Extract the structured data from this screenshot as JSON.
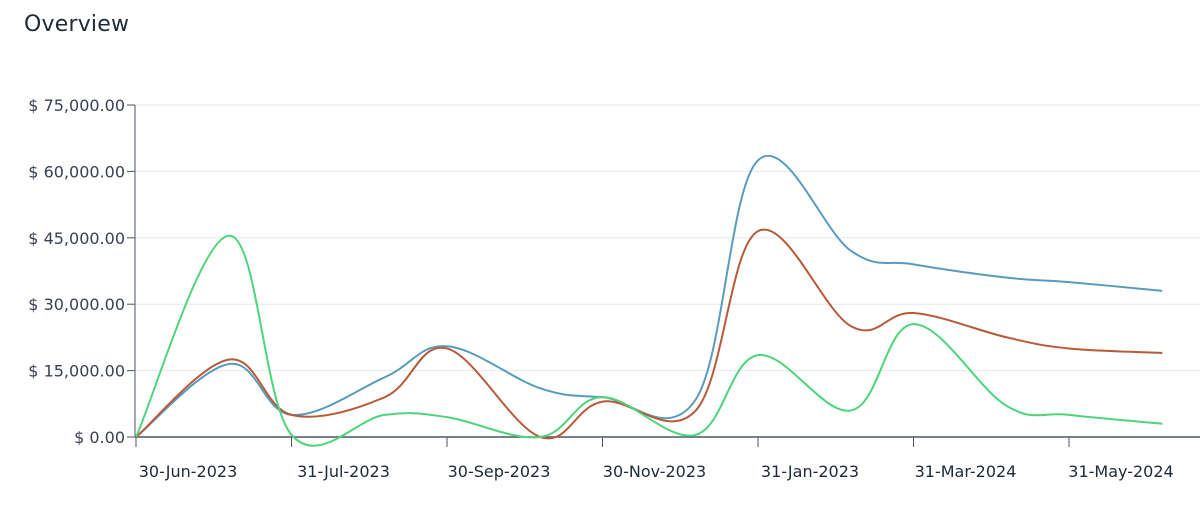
{
  "header": {
    "title": "Overview"
  },
  "colors": {
    "blue": "#5a9bbd",
    "red": "#b85a3a",
    "green": "#4ed47a",
    "grid": "#e5e7eb",
    "axis": "#4b5563"
  },
  "chart_data": {
    "type": "line",
    "title": "",
    "xlabel": "",
    "ylabel": "",
    "ylim": [
      0,
      75000
    ],
    "y_ticks": [
      {
        "value": 0,
        "label": "$ 0.00"
      },
      {
        "value": 15000,
        "label": "$ 15,000.00"
      },
      {
        "value": 30000,
        "label": "$ 30,000.00"
      },
      {
        "value": 45000,
        "label": "$ 45,000.00"
      },
      {
        "value": 60000,
        "label": "$ 60,000.00"
      },
      {
        "value": 75000,
        "label": "$ 75,000.00"
      }
    ],
    "x_tick_labels": [
      "30-Jun-2023",
      "31-Jul-2023",
      "30-Sep-2023",
      "30-Nov-2023",
      "31-Jan-2023",
      "31-Mar-2024",
      "31-May-2024"
    ],
    "x_tick_index": [
      0,
      1,
      2,
      3,
      4,
      5,
      6
    ],
    "x": [
      0,
      0.6,
      1.0,
      1.6,
      2.0,
      2.6,
      3.0,
      3.6,
      4.0,
      4.6,
      5.0,
      5.6,
      6.0,
      6.6
    ],
    "series": [
      {
        "color": "blue",
        "values": [
          0,
          16500,
          5000,
          13500,
          20500,
          11000,
          9000,
          8500,
          62500,
          42000,
          39000,
          36000,
          35000,
          33000
        ]
      },
      {
        "color": "red",
        "values": [
          0,
          17500,
          5000,
          9000,
          20000,
          0,
          8000,
          6000,
          46500,
          25000,
          28000,
          22500,
          20000,
          19000
        ]
      },
      {
        "color": "green",
        "values": [
          0,
          45500,
          500,
          5000,
          4500,
          0,
          9000,
          500,
          18500,
          6000,
          25500,
          7000,
          5000,
          3000
        ]
      }
    ]
  }
}
